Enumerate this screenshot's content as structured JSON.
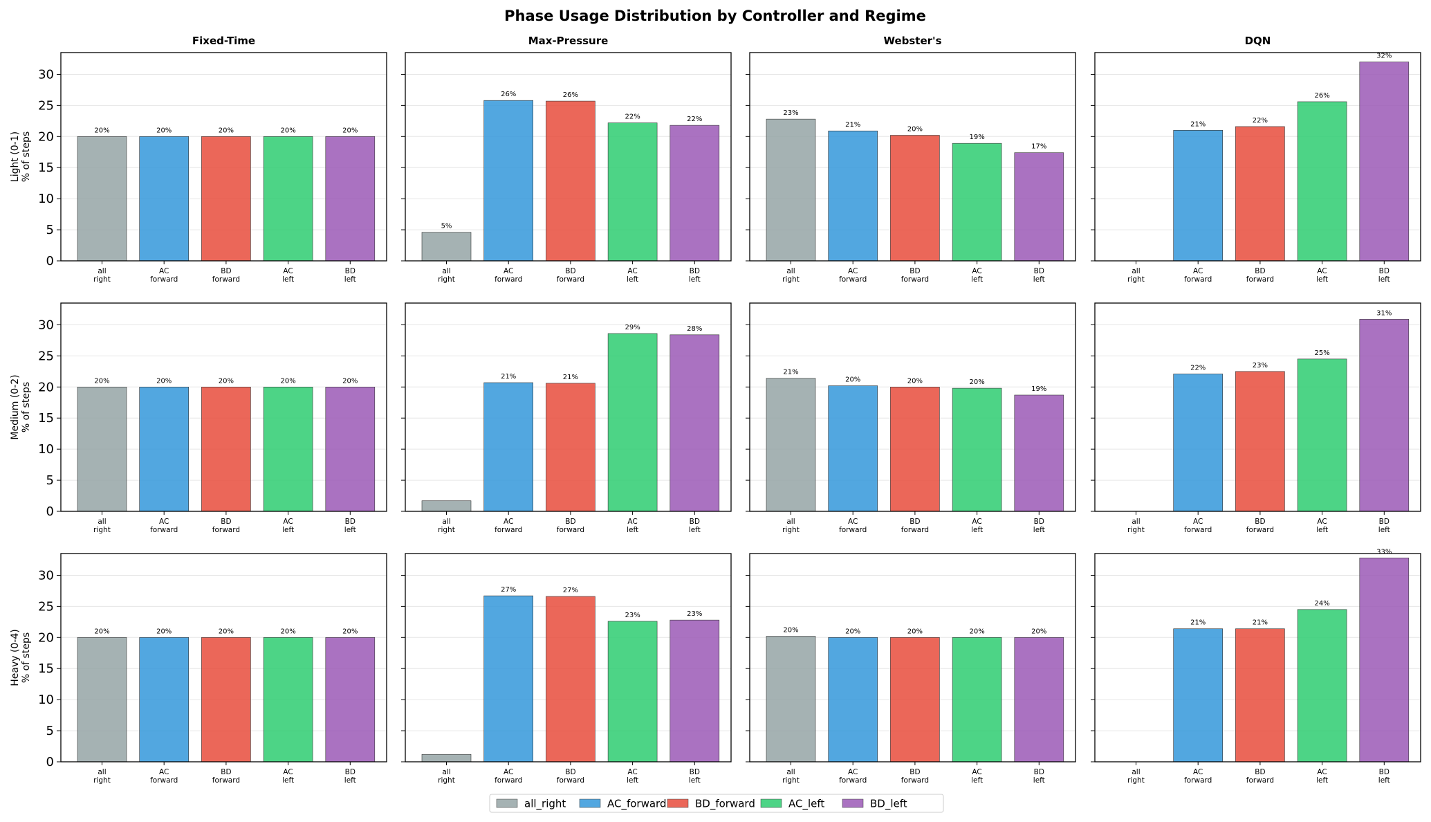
{
  "figure": {
    "title": "Phase Usage Distribution by Controller and Regime"
  },
  "colors": {
    "all_right": "#95a5a6",
    "AC_forward": "#3498db",
    "BD_forward": "#e74c3c",
    "AC_left": "#2ecc71",
    "BD_left": "#9b59b6",
    "grid": "#e6e6e6",
    "axis": "#000000"
  },
  "legend": {
    "position": "bottom-center",
    "items": [
      "all_right",
      "AC_forward",
      "BD_forward",
      "AC_left",
      "BD_left"
    ]
  },
  "chart_data": {
    "type": "bar",
    "layout": "grid 3 rows x 4 columns",
    "controllers": [
      "Fixed-Time",
      "Max-Pressure",
      "Webster's",
      "DQN"
    ],
    "regimes": [
      "Light (0-1)",
      "Medium (0-2)",
      "Heavy (0-4)"
    ],
    "ylabel": "% of steps",
    "categories": [
      "all_right",
      "AC_forward",
      "BD_forward",
      "AC_left",
      "BD_left"
    ],
    "tick_labels": [
      [
        "all",
        "right"
      ],
      [
        "AC",
        "forward"
      ],
      [
        "BD",
        "forward"
      ],
      [
        "AC",
        "left"
      ],
      [
        "BD",
        "left"
      ]
    ],
    "ylim": [
      0,
      33.5
    ],
    "yticks": [
      0,
      5,
      10,
      15,
      20,
      25,
      30
    ],
    "grid": "y",
    "values": [
      [
        [
          20,
          20,
          20,
          20,
          20
        ],
        [
          4.6,
          25.8,
          25.7,
          22.2,
          21.8
        ],
        [
          22.8,
          20.9,
          20.2,
          18.9,
          17.4
        ],
        [
          0,
          21.0,
          21.6,
          25.6,
          32.0
        ]
      ],
      [
        [
          20,
          20,
          20,
          20,
          20
        ],
        [
          1.7,
          20.7,
          20.6,
          28.6,
          28.4
        ],
        [
          21.4,
          20.2,
          20.0,
          19.8,
          18.7
        ],
        [
          0,
          22.1,
          22.5,
          24.5,
          30.9
        ]
      ],
      [
        [
          20,
          20,
          20,
          20,
          20
        ],
        [
          1.2,
          26.7,
          26.6,
          22.6,
          22.8
        ],
        [
          20.2,
          20.0,
          20.0,
          20.0,
          20.0
        ],
        [
          0,
          21.4,
          21.4,
          24.5,
          32.8
        ]
      ]
    ],
    "bar_labels": [
      [
        [
          "20%",
          "20%",
          "20%",
          "20%",
          "20%"
        ],
        [
          "5%",
          "26%",
          "26%",
          "22%",
          "22%"
        ],
        [
          "23%",
          "21%",
          "20%",
          "19%",
          "17%"
        ],
        [
          "",
          "21%",
          "22%",
          "26%",
          "32%"
        ]
      ],
      [
        [
          "20%",
          "20%",
          "20%",
          "20%",
          "20%"
        ],
        [
          "",
          "21%",
          "21%",
          "29%",
          "28%"
        ],
        [
          "21%",
          "20%",
          "20%",
          "20%",
          "19%"
        ],
        [
          "",
          "22%",
          "23%",
          "25%",
          "31%"
        ]
      ],
      [
        [
          "20%",
          "20%",
          "20%",
          "20%",
          "20%"
        ],
        [
          "",
          "27%",
          "27%",
          "23%",
          "23%"
        ],
        [
          "20%",
          "20%",
          "20%",
          "20%",
          "20%"
        ],
        [
          "",
          "21%",
          "21%",
          "24%",
          "33%"
        ]
      ]
    ]
  }
}
